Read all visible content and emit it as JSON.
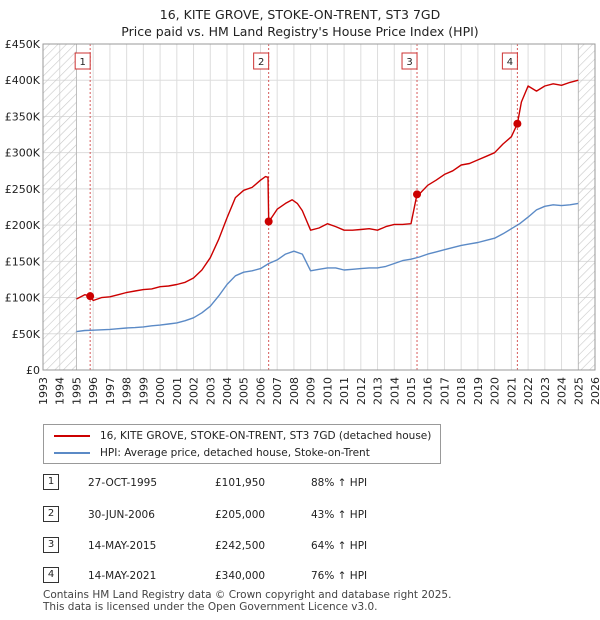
{
  "title_line1": "16, KITE GROVE, STOKE-ON-TRENT, ST3 7GD",
  "title_line2": "Price paid vs. HM Land Registry's House Price Index (HPI)",
  "colors": {
    "price": "#cc0000",
    "hpi": "#5b8ac6",
    "grid": "#dddddd",
    "sale_line": "#cc3333",
    "hatch": "#bbbbbb"
  },
  "chart_data": {
    "type": "line",
    "title": "Price paid vs. HM Land Registry's House Price Index (HPI)",
    "xlabel": "",
    "ylabel": "",
    "xlim": [
      1993,
      2026
    ],
    "ylim": [
      0,
      450000
    ],
    "x_ticks": [
      1993,
      1994,
      1995,
      1996,
      1997,
      1998,
      1999,
      2000,
      2001,
      2002,
      2003,
      2004,
      2005,
      2006,
      2007,
      2008,
      2009,
      2010,
      2011,
      2012,
      2013,
      2014,
      2015,
      2016,
      2017,
      2018,
      2019,
      2020,
      2021,
      2022,
      2023,
      2024,
      2025,
      2026
    ],
    "y_ticks": [
      {
        "value": 0,
        "label": "£0"
      },
      {
        "value": 50000,
        "label": "£50K"
      },
      {
        "value": 100000,
        "label": "£100K"
      },
      {
        "value": 150000,
        "label": "£150K"
      },
      {
        "value": 200000,
        "label": "£200K"
      },
      {
        "value": 250000,
        "label": "£250K"
      },
      {
        "value": 300000,
        "label": "£300K"
      },
      {
        "value": 350000,
        "label": "£350K"
      },
      {
        "value": 400000,
        "label": "£400K"
      },
      {
        "value": 450000,
        "label": "£450K"
      }
    ],
    "shaded_before": 1995.0,
    "shaded_after": 2025.0,
    "series": [
      {
        "name": "16, KITE GROVE, STOKE-ON-TRENT, ST3 7GD (detached house)",
        "x": [
          1995.0,
          1995.5,
          1995.82,
          1996.0,
          1996.5,
          1997.0,
          1997.5,
          1998.0,
          1998.5,
          1999.0,
          1999.5,
          2000.0,
          2000.5,
          2001.0,
          2001.5,
          2002.0,
          2002.5,
          2003.0,
          2003.5,
          2004.0,
          2004.5,
          2005.0,
          2005.5,
          2006.0,
          2006.3,
          2006.45,
          2006.49,
          2006.6,
          2007.0,
          2007.5,
          2007.9,
          2008.2,
          2008.5,
          2009.0,
          2009.5,
          2010.0,
          2010.5,
          2011.0,
          2011.5,
          2012.0,
          2012.5,
          2013.0,
          2013.5,
          2014.0,
          2014.5,
          2015.0,
          2015.36,
          2015.5,
          2016.0,
          2016.5,
          2017.0,
          2017.5,
          2018.0,
          2018.5,
          2019.0,
          2019.5,
          2020.0,
          2020.5,
          2021.0,
          2021.36,
          2021.6,
          2022.0,
          2022.5,
          2023.0,
          2023.5,
          2024.0,
          2024.5,
          2025.0
        ],
        "values": [
          98000,
          104000,
          101950,
          96000,
          100000,
          101000,
          104000,
          107000,
          109000,
          111000,
          112000,
          115000,
          116000,
          118000,
          121000,
          127000,
          138000,
          155000,
          180000,
          210000,
          238000,
          248000,
          252000,
          262000,
          267000,
          266000,
          205000,
          208000,
          222000,
          230000,
          235000,
          230000,
          220000,
          193000,
          196000,
          202000,
          198000,
          193000,
          193000,
          194000,
          195000,
          193000,
          198000,
          201000,
          201000,
          202000,
          242500,
          243000,
          255000,
          262000,
          270000,
          275000,
          283000,
          285000,
          290000,
          295000,
          300000,
          312000,
          322000,
          340000,
          370000,
          392000,
          385000,
          392000,
          395000,
          393000,
          397000,
          400000
        ]
      },
      {
        "name": "HPI: Average price, detached house, Stoke-on-Trent",
        "x": [
          1995.0,
          1995.5,
          1996.0,
          1996.5,
          1997.0,
          1997.5,
          1998.0,
          1998.5,
          1999.0,
          1999.5,
          2000.0,
          2000.5,
          2001.0,
          2001.5,
          2002.0,
          2002.5,
          2003.0,
          2003.5,
          2004.0,
          2004.5,
          2005.0,
          2005.5,
          2006.0,
          2006.5,
          2007.0,
          2007.5,
          2008.0,
          2008.5,
          2009.0,
          2009.5,
          2010.0,
          2010.5,
          2011.0,
          2011.5,
          2012.0,
          2012.5,
          2013.0,
          2013.5,
          2014.0,
          2014.5,
          2015.0,
          2015.5,
          2016.0,
          2016.5,
          2017.0,
          2017.5,
          2018.0,
          2018.5,
          2019.0,
          2019.5,
          2020.0,
          2020.5,
          2021.0,
          2021.5,
          2022.0,
          2022.5,
          2023.0,
          2023.5,
          2024.0,
          2024.5,
          2025.0
        ],
        "values": [
          53000,
          54500,
          55000,
          55500,
          56000,
          57000,
          58000,
          58500,
          59500,
          61000,
          62000,
          63500,
          65000,
          68000,
          72000,
          79000,
          88000,
          102000,
          118000,
          130000,
          135000,
          137000,
          140000,
          147000,
          152000,
          160000,
          164000,
          160000,
          137000,
          139000,
          141000,
          141000,
          138000,
          139000,
          140000,
          141000,
          141000,
          143000,
          147000,
          151000,
          153000,
          156000,
          160000,
          163000,
          166000,
          169000,
          172000,
          174000,
          176000,
          179000,
          182000,
          188000,
          195000,
          202000,
          211000,
          221000,
          226000,
          228000,
          227000,
          228000,
          230000
        ]
      }
    ],
    "sales": [
      {
        "num": "1",
        "x": 1995.82,
        "price": 101950
      },
      {
        "num": "2",
        "x": 2006.49,
        "price": 205000
      },
      {
        "num": "3",
        "x": 2015.36,
        "price": 242500
      },
      {
        "num": "4",
        "x": 2021.36,
        "price": 340000
      }
    ]
  },
  "legend": {
    "price_label": "16, KITE GROVE, STOKE-ON-TRENT, ST3 7GD (detached house)",
    "hpi_label": "HPI: Average price, detached house, Stoke-on-Trent"
  },
  "sales_table": [
    {
      "num": "1",
      "date": "27-OCT-1995",
      "price": "£101,950",
      "hpi": "88% ↑ HPI"
    },
    {
      "num": "2",
      "date": "30-JUN-2006",
      "price": "£205,000",
      "hpi": "43% ↑ HPI"
    },
    {
      "num": "3",
      "date": "14-MAY-2015",
      "price": "£242,500",
      "hpi": "64% ↑ HPI"
    },
    {
      "num": "4",
      "date": "14-MAY-2021",
      "price": "£340,000",
      "hpi": "76% ↑ HPI"
    }
  ],
  "footer": {
    "line1": "Contains HM Land Registry data © Crown copyright and database right 2025.",
    "line2": "This data is licensed under the Open Government Licence v3.0."
  }
}
